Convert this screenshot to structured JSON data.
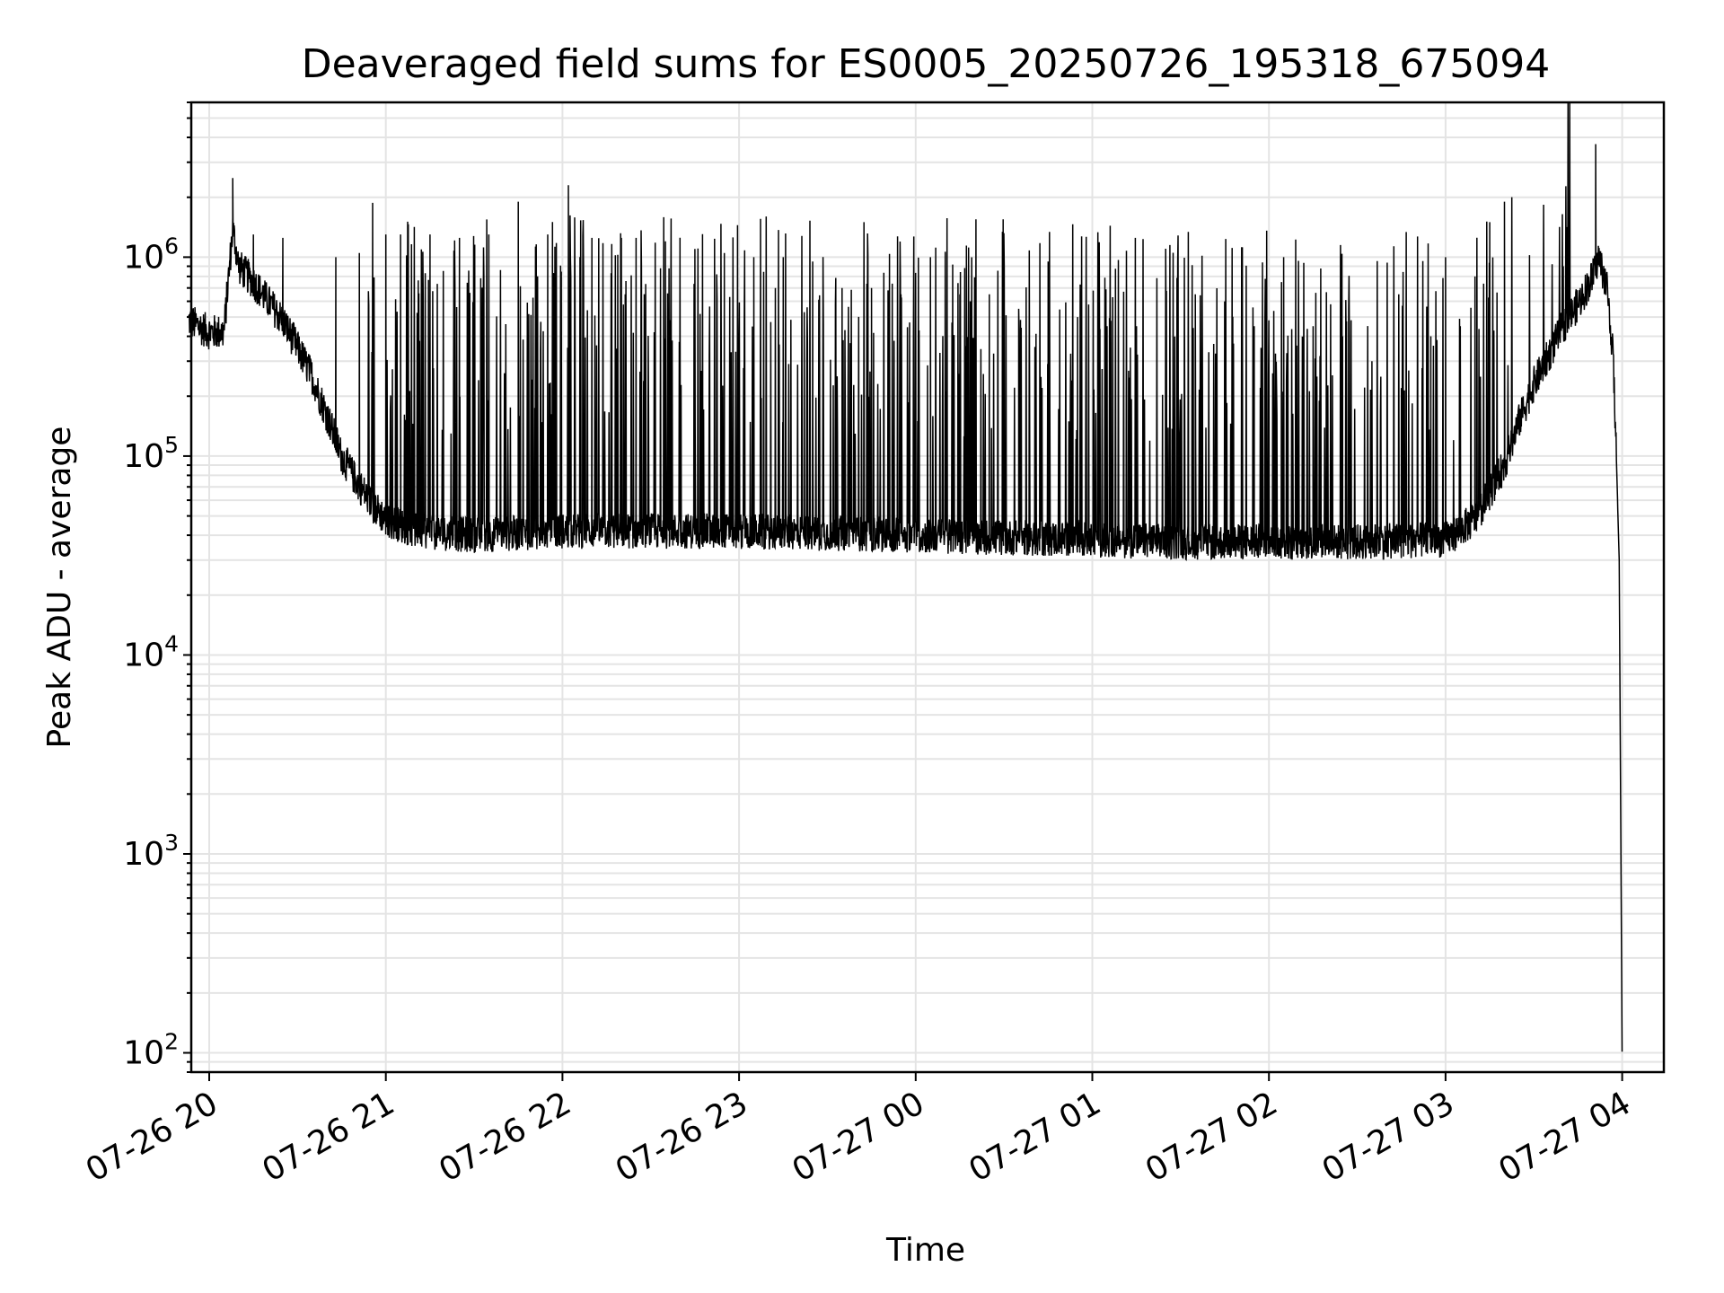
{
  "chart_data": {
    "type": "line",
    "title": "Deaveraged field sums for ES0005_20250726_195318_675094",
    "xlabel": "Time",
    "ylabel": "Peak ADU - average",
    "y_scale": "log",
    "ylim": [
      80,
      6000000
    ],
    "xlim": [
      "07-26 19:53",
      "07-27 04:14"
    ],
    "grid": true,
    "x_ticks": [
      "07-26 20",
      "07-26 21",
      "07-26 22",
      "07-26 23",
      "07-27 00",
      "07-27 01",
      "07-27 02",
      "07-27 03",
      "07-27 04"
    ],
    "y_ticks": [
      100,
      1000,
      10000,
      100000,
      1000000
    ],
    "y_tick_labels": [
      {
        "base": "10",
        "exp": "2"
      },
      {
        "base": "10",
        "exp": "3"
      },
      {
        "base": "10",
        "exp": "4"
      },
      {
        "base": "10",
        "exp": "5"
      },
      {
        "base": "10",
        "exp": "6"
      }
    ],
    "series": [
      {
        "color": "#000000",
        "points": [
          [
            "07-26 19:53",
            480000
          ],
          [
            "07-26 20:00",
            420000
          ],
          [
            "07-26 20:05",
            420000
          ],
          [
            "07-26 20:08",
            1400000
          ],
          [
            "07-26 20:10",
            900000
          ],
          [
            "07-26 20:15",
            750000
          ],
          [
            "07-26 20:20",
            600000
          ],
          [
            "07-26 20:25",
            480000
          ],
          [
            "07-26 20:30",
            350000
          ],
          [
            "07-26 20:35",
            250000
          ],
          [
            "07-26 20:40",
            160000
          ],
          [
            "07-26 20:45",
            100000
          ],
          [
            "07-26 20:50",
            75000
          ],
          [
            "07-26 20:55",
            58000
          ],
          [
            "07-26 21:00",
            48000
          ],
          [
            "07-26 21:10",
            42000
          ],
          [
            "07-26 21:30",
            40000
          ],
          [
            "07-26 22:00",
            42000
          ],
          [
            "07-26 22:30",
            42000
          ],
          [
            "07-26 23:00",
            42000
          ],
          [
            "07-26 23:30",
            41000
          ],
          [
            "07-27 00:00",
            40000
          ],
          [
            "07-27 00:30",
            39000
          ],
          [
            "07-27 01:00",
            38000
          ],
          [
            "07-27 01:30",
            37000
          ],
          [
            "07-27 02:00",
            37000
          ],
          [
            "07-27 02:30",
            37000
          ],
          [
            "07-27 03:00",
            38000
          ],
          [
            "07-27 03:10",
            48000
          ],
          [
            "07-27 03:20",
            90000
          ],
          [
            "07-27 03:25",
            150000
          ],
          [
            "07-27 03:30",
            230000
          ],
          [
            "07-27 03:35",
            320000
          ],
          [
            "07-27 03:40",
            450000
          ],
          [
            "07-27 03:45",
            580000
          ],
          [
            "07-27 03:50",
            800000
          ],
          [
            "07-27 03:52",
            1000000
          ],
          [
            "07-27 03:55",
            700000
          ],
          [
            "07-27 03:57",
            300000
          ],
          [
            "07-27 03:58",
            100000
          ],
          [
            "07-27 03:59",
            30000
          ],
          [
            "07-27 04:00",
            80
          ]
        ],
        "spikes": [
          [
            "07-26 20:08",
            2500000
          ],
          [
            "07-26 20:15",
            1300000
          ],
          [
            "07-26 20:25",
            1250000
          ],
          [
            "07-26 20:43",
            1000000
          ],
          [
            "07-26 20:51",
            1050000
          ],
          [
            "07-26 21:00",
            1300000
          ],
          [
            "07-26 21:05",
            1300000
          ],
          [
            "07-26 21:15",
            1300000
          ],
          [
            "07-26 21:25",
            1250000
          ],
          [
            "07-26 21:35",
            1300000
          ],
          [
            "07-26 21:45",
            1900000
          ],
          [
            "07-26 21:55",
            1300000
          ],
          [
            "07-26 22:02",
            2300000
          ],
          [
            "07-26 22:10",
            1250000
          ],
          [
            "07-26 22:20",
            1250000
          ],
          [
            "07-26 22:25",
            1250000
          ],
          [
            "07-26 22:35",
            1200000
          ],
          [
            "07-26 22:45",
            1100000
          ],
          [
            "07-26 22:55",
            1050000
          ],
          [
            "07-26 23:05",
            1000000
          ],
          [
            "07-26 23:15",
            1000000
          ],
          [
            "07-26 23:25",
            950000
          ],
          [
            "07-26 23:35",
            700000
          ],
          [
            "07-26 23:45",
            700000
          ],
          [
            "07-26 23:55",
            650000
          ],
          [
            "07-27 00:05",
            1000000
          ],
          [
            "07-27 00:15",
            650000
          ],
          [
            "07-27 00:25",
            650000
          ],
          [
            "07-27 00:35",
            550000
          ],
          [
            "07-27 00:45",
            950000
          ],
          [
            "07-27 00:55",
            500000
          ],
          [
            "07-27 01:05",
            450000
          ],
          [
            "07-27 01:15",
            450000
          ],
          [
            "07-27 01:25",
            650000
          ],
          [
            "07-27 01:35",
            650000
          ],
          [
            "07-27 01:45",
            550000
          ],
          [
            "07-27 01:55",
            450000
          ],
          [
            "07-27 02:05",
            1000000
          ],
          [
            "07-27 02:15",
            450000
          ],
          [
            "07-27 02:25",
            400000
          ],
          [
            "07-27 02:35",
            300000
          ],
          [
            "07-27 02:45",
            220000
          ],
          [
            "07-27 02:55",
            400000
          ],
          [
            "07-27 03:00",
            1000000
          ],
          [
            "07-27 03:05",
            450000
          ],
          [
            "07-27 03:10",
            800000
          ],
          [
            "07-27 03:15",
            1500000
          ],
          [
            "07-27 03:20",
            1900000
          ],
          [
            "07-27 03:40",
            900000
          ],
          [
            "07-27 03:51",
            3700000
          ]
        ]
      }
    ]
  }
}
